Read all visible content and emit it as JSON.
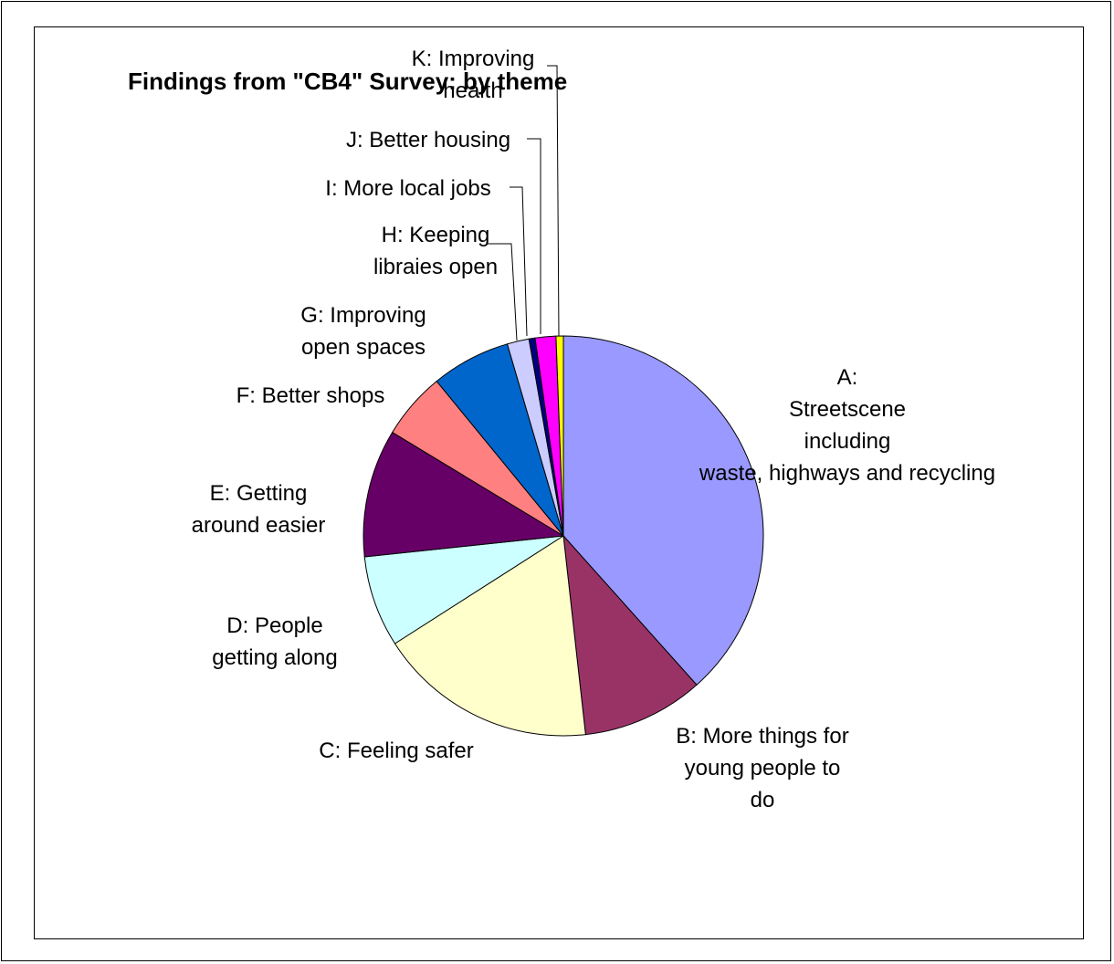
{
  "chart_data": {
    "type": "pie",
    "title": "Findings from \"CB4\" Survey: by theme",
    "slices": [
      {
        "label": "A: Streetscene including waste, highways and recycling",
        "value": 39.0,
        "color": "#9999FF"
      },
      {
        "label": "B: More things for young people to do",
        "value": 10.0,
        "color": "#993366"
      },
      {
        "label": "C: Feeling safer",
        "value": 18.0,
        "color": "#FFFFCC"
      },
      {
        "label": "D: People getting along",
        "value": 7.5,
        "color": "#CCFFFF"
      },
      {
        "label": "E: Getting around easier",
        "value": 10.5,
        "color": "#660066"
      },
      {
        "label": "F: Better shops",
        "value": 5.5,
        "color": "#FF8080"
      },
      {
        "label": "G: Improving open spaces",
        "value": 6.5,
        "color": "#0066CC"
      },
      {
        "label": "H: Keeping libraies open",
        "value": 1.8,
        "color": "#CCCCFF"
      },
      {
        "label": "I: More local jobs",
        "value": 0.5,
        "color": "#000080"
      },
      {
        "label": "J: Better housing",
        "value": 1.7,
        "color": "#FF00FF"
      },
      {
        "label": "K: Improving health",
        "value": 0.6,
        "color": "#FFFF00"
      }
    ],
    "start_angle": "12 o'clock",
    "direction": "clockwise",
    "legend": "none"
  }
}
